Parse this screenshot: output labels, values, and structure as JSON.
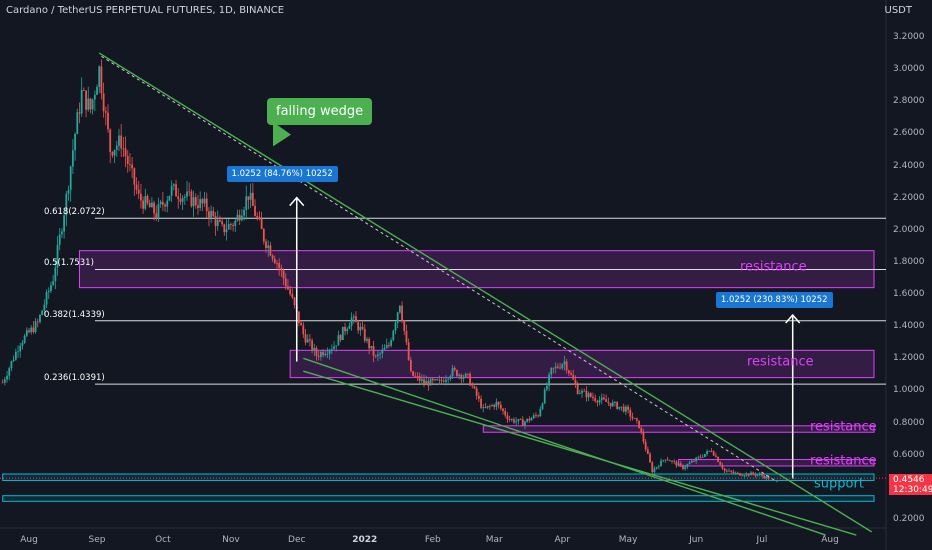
{
  "header": {
    "title": "Cardano / TetherUS PERPETUAL FUTURES, 1D, BINANCE"
  },
  "axis": {
    "unit": "USDT"
  },
  "chart_data": {
    "type": "candlestick",
    "y_ticks": [
      "3.2000",
      "3.0000",
      "2.8000",
      "2.6000",
      "2.4000",
      "2.2000",
      "2.0000",
      "1.8000",
      "1.6000",
      "1.4000",
      "1.2000",
      "1.0000",
      "0.8000",
      "0.6000",
      "0.4000",
      "0.2000"
    ],
    "y_tick_values": [
      3.2,
      3.0,
      2.8,
      2.6,
      2.4,
      2.2,
      2.0,
      1.8,
      1.6,
      1.4,
      1.2,
      1.0,
      0.8,
      0.6,
      0.4,
      0.2
    ],
    "x_ticks": [
      {
        "label": "Aug",
        "date": "2021-08-01",
        "bold": false
      },
      {
        "label": "Sep",
        "date": "2021-09-01",
        "bold": false
      },
      {
        "label": "Oct",
        "date": "2021-10-01",
        "bold": false
      },
      {
        "label": "Nov",
        "date": "2021-11-01",
        "bold": false
      },
      {
        "label": "Dec",
        "date": "2021-12-01",
        "bold": false
      },
      {
        "label": "2022",
        "date": "2022-01-01",
        "bold": true
      },
      {
        "label": "Feb",
        "date": "2022-02-01",
        "bold": false
      },
      {
        "label": "Mar",
        "date": "2022-03-01",
        "bold": false
      },
      {
        "label": "Apr",
        "date": "2022-04-01",
        "bold": false
      },
      {
        "label": "May",
        "date": "2022-05-01",
        "bold": false
      },
      {
        "label": "Jun",
        "date": "2022-06-01",
        "bold": false
      },
      {
        "label": "Jul",
        "date": "2022-07-01",
        "bold": false
      },
      {
        "label": "Aug",
        "date": "2022-08-01",
        "bold": false
      }
    ],
    "price_path": [
      [
        "2021-07-20",
        1.05
      ],
      [
        "2021-07-28",
        1.3
      ],
      [
        "2021-08-05",
        1.42
      ],
      [
        "2021-08-12",
        1.7
      ],
      [
        "2021-08-18",
        2.2
      ],
      [
        "2021-08-22",
        2.6
      ],
      [
        "2021-08-25",
        2.85
      ],
      [
        "2021-08-29",
        2.75
      ],
      [
        "2021-09-02",
        3.0
      ],
      [
        "2021-09-07",
        2.5
      ],
      [
        "2021-09-12",
        2.55
      ],
      [
        "2021-09-20",
        2.2
      ],
      [
        "2021-09-28",
        2.1
      ],
      [
        "2021-10-05",
        2.25
      ],
      [
        "2021-10-12",
        2.2
      ],
      [
        "2021-10-20",
        2.15
      ],
      [
        "2021-10-28",
        2.0
      ],
      [
        "2021-11-03",
        2.05
      ],
      [
        "2021-11-09",
        2.22
      ],
      [
        "2021-11-16",
        1.95
      ],
      [
        "2021-11-22",
        1.8
      ],
      [
        "2021-11-28",
        1.6
      ],
      [
        "2021-12-04",
        1.35
      ],
      [
        "2021-12-10",
        1.22
      ],
      [
        "2021-12-18",
        1.28
      ],
      [
        "2021-12-26",
        1.45
      ],
      [
        "2021-12-30",
        1.38
      ],
      [
        "2022-01-06",
        1.2
      ],
      [
        "2022-01-12",
        1.28
      ],
      [
        "2022-01-17",
        1.55
      ],
      [
        "2022-01-22",
        1.1
      ],
      [
        "2022-01-28",
        1.05
      ],
      [
        "2022-02-04",
        1.05
      ],
      [
        "2022-02-10",
        1.12
      ],
      [
        "2022-02-17",
        1.08
      ],
      [
        "2022-02-24",
        0.88
      ],
      [
        "2022-03-02",
        0.92
      ],
      [
        "2022-03-08",
        0.82
      ],
      [
        "2022-03-14",
        0.8
      ],
      [
        "2022-03-21",
        0.85
      ],
      [
        "2022-03-27",
        1.12
      ],
      [
        "2022-04-02",
        1.18
      ],
      [
        "2022-04-08",
        1.0
      ],
      [
        "2022-04-16",
        0.95
      ],
      [
        "2022-04-23",
        0.92
      ],
      [
        "2022-04-30",
        0.88
      ],
      [
        "2022-05-06",
        0.78
      ],
      [
        "2022-05-12",
        0.5
      ],
      [
        "2022-05-18",
        0.58
      ],
      [
        "2022-05-26",
        0.52
      ],
      [
        "2022-06-02",
        0.58
      ],
      [
        "2022-06-08",
        0.63
      ],
      [
        "2022-06-14",
        0.5
      ],
      [
        "2022-06-20",
        0.48
      ],
      [
        "2022-06-27",
        0.48
      ],
      [
        "2022-07-01",
        0.47
      ],
      [
        "2022-07-04",
        0.4546
      ]
    ],
    "fibonacci": [
      {
        "label": "0.618(2.0722)",
        "value": 2.0722
      },
      {
        "label": "0.5(1.7531)",
        "value": 1.7531
      },
      {
        "label": "0.382(1.4339)",
        "value": 1.4339
      },
      {
        "label": "0.236(1.0391)",
        "value": 1.0391
      }
    ],
    "zones": [
      {
        "label": "resistance",
        "top": 1.87,
        "bottom": 1.64,
        "from": "2021-08-24",
        "color": "#e040fb"
      },
      {
        "label": "resistance",
        "top": 1.25,
        "bottom": 1.08,
        "from": "2021-11-28",
        "color": "#e040fb"
      },
      {
        "label": "resistance",
        "top": 0.78,
        "bottom": 0.74,
        "from": "2022-02-24",
        "color": "#e040fb"
      },
      {
        "label": "resistance",
        "top": 0.57,
        "bottom": 0.53,
        "from": "2022-05-24",
        "color": "#e040fb"
      },
      {
        "label": "support",
        "top": 0.48,
        "bottom": 0.44,
        "from": "2021-07-20",
        "color": "#00bcd4"
      },
      {
        "label": "",
        "top": 0.345,
        "bottom": 0.31,
        "from": "2021-07-20",
        "color": "#00bcd4"
      }
    ],
    "wedge_lines": [
      {
        "from": [
          "2021-09-02",
          3.1
        ],
        "to": [
          "2022-08-20",
          0.12
        ]
      },
      {
        "from": [
          "2021-12-04",
          1.12
        ],
        "to": [
          "2022-08-13",
          0.1
        ]
      },
      {
        "from": [
          "2021-12-04",
          1.2
        ],
        "to": [
          "2022-07-30",
          0.1
        ]
      }
    ],
    "dashed_line": {
      "from": [
        "2021-09-03",
        3.08
      ],
      "to": [
        "2022-07-08",
        0.43
      ]
    },
    "annotations": {
      "callout": "falling wedge"
    },
    "measures": [
      {
        "label": "1.0252 (84.76%) 10252",
        "x": "2021-12-01",
        "from": 1.18,
        "to": 2.2,
        "label_at": [
          "2021-10-30",
          2.4
        ]
      },
      {
        "label": "1.0252 (230.83%) 10252",
        "x": "2022-07-15",
        "from": 0.45,
        "to": 1.47,
        "label_at": [
          "2022-06-10",
          1.61
        ]
      }
    ],
    "last_price": {
      "value": "0.4546",
      "countdown": "12:30:49"
    }
  },
  "colors": {
    "up": "#26a69a",
    "down": "#ef5350",
    "wedge": "#4caf50",
    "fib": "#ffffff",
    "measure": "#1976d2",
    "support": "#00bcd4",
    "resistance_label": "#e040fb"
  }
}
